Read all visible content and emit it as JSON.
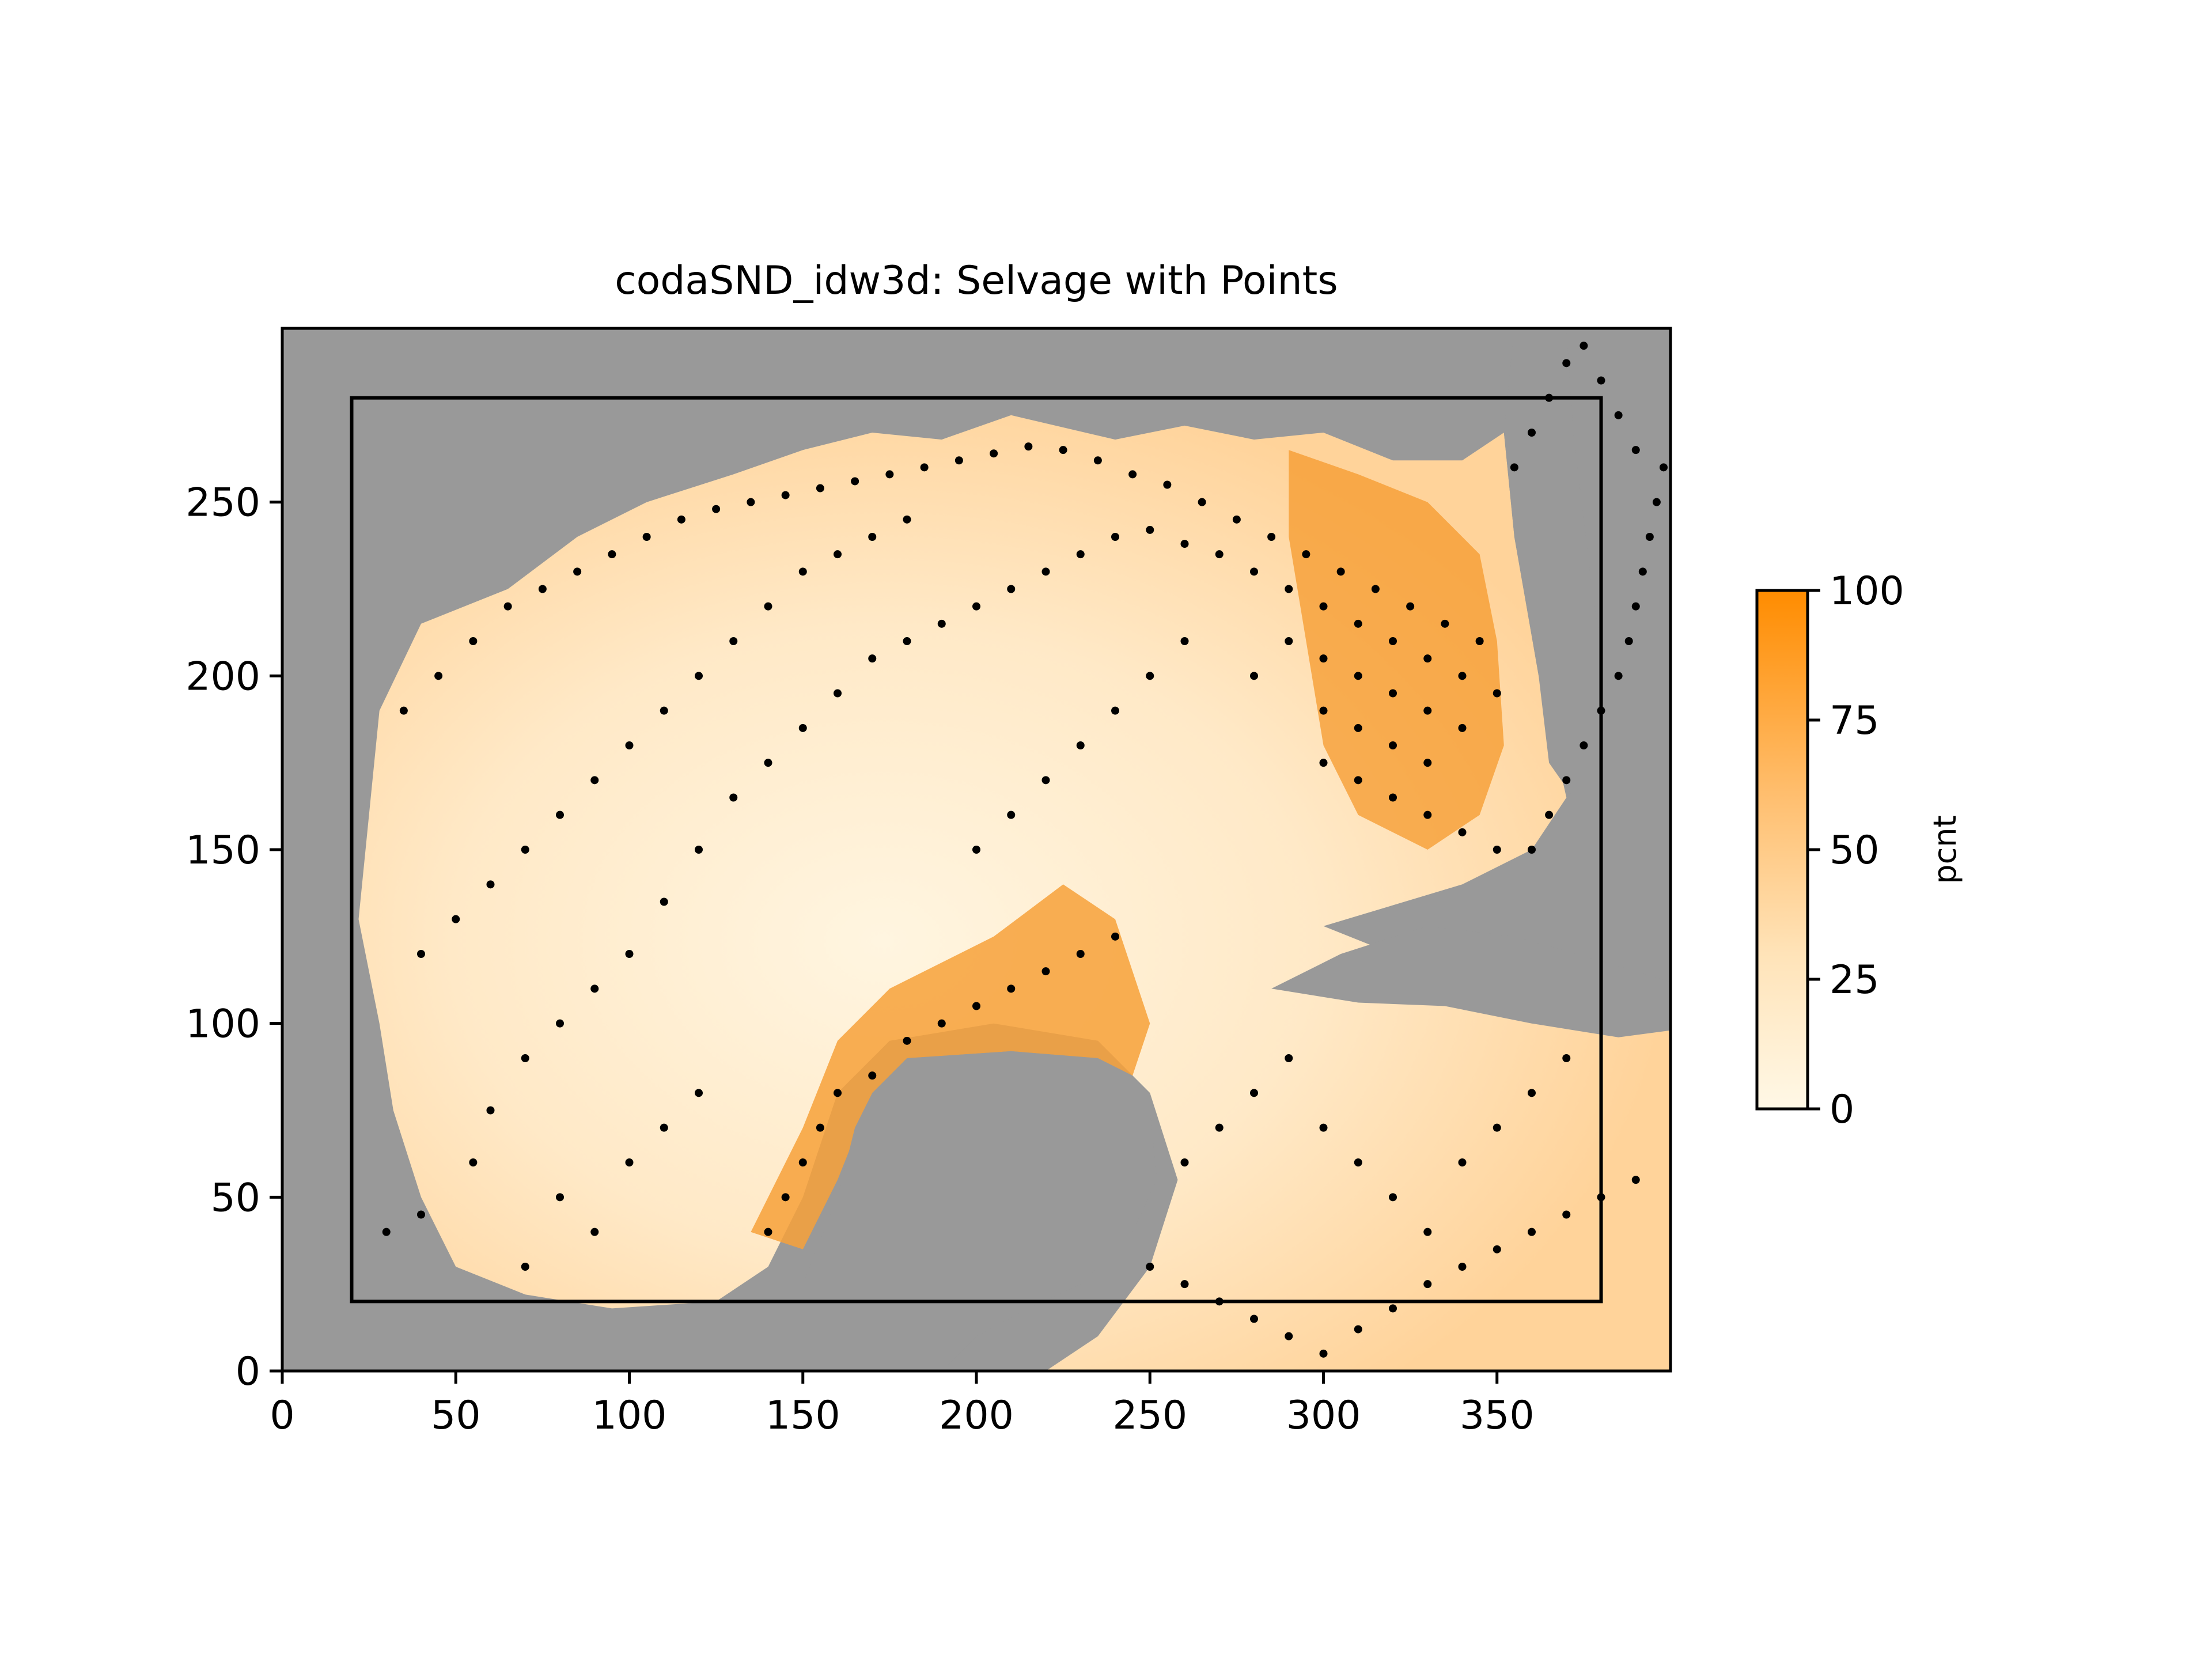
{
  "chart_data": {
    "type": "heatmap",
    "title": "codaSND_idw3d: Selvage with Points",
    "xlim": [
      0,
      400
    ],
    "ylim": [
      0,
      300
    ],
    "x_ticks": [
      0,
      50,
      100,
      150,
      200,
      250,
      300,
      350
    ],
    "y_ticks": [
      0,
      50,
      100,
      150,
      200,
      250
    ],
    "x_tick_labels": [
      "0",
      "50",
      "100",
      "150",
      "200",
      "250",
      "300",
      "350"
    ],
    "y_tick_labels": [
      "0",
      "50",
      "100",
      "150",
      "200",
      "250"
    ],
    "selvage_box": {
      "x0": 20,
      "y0": 20,
      "x1": 380,
      "y1": 280
    },
    "colorbar": {
      "label": "pcnt",
      "range": [
        0,
        100
      ],
      "ticks": [
        0,
        25,
        50,
        75,
        100
      ],
      "tick_labels": [
        "0",
        "25",
        "50",
        "75",
        "100"
      ],
      "low_color": "#fff8e6",
      "high_color": "#ff8c00"
    },
    "colors": {
      "nodata": "#999999",
      "points": "#000000",
      "frame": "#000000"
    },
    "regions": {
      "land_west_gulf": [
        [
          40,
          50
        ],
        [
          50,
          30
        ],
        [
          70,
          22
        ],
        [
          95,
          18
        ],
        [
          125,
          20
        ],
        [
          140,
          30
        ],
        [
          150,
          50
        ],
        [
          150,
          80
        ],
        [
          160,
          100
        ],
        [
          190,
          118
        ],
        [
          215,
          140
        ],
        [
          235,
          150
        ],
        [
          250,
          140
        ],
        [
          260,
          110
        ],
        [
          290,
          105
        ],
        [
          320,
          120
        ],
        [
          345,
          118
        ],
        [
          360,
          115
        ],
        [
          380,
          110
        ],
        [
          390,
          105
        ],
        [
          400,
          100
        ],
        [
          400,
          300
        ],
        [
          0,
          300
        ],
        [
          0,
          230
        ],
        [
          25,
          215
        ],
        [
          30,
          190
        ],
        [
          28,
          170
        ],
        [
          25,
          150
        ],
        [
          22,
          120
        ],
        [
          30,
          95
        ],
        [
          35,
          70
        ]
      ],
      "yucatan_land": [
        [
          170,
          80
        ],
        [
          180,
          90
        ],
        [
          210,
          92
        ],
        [
          235,
          90
        ],
        [
          245,
          85
        ],
        [
          250,
          75
        ],
        [
          252,
          55
        ],
        [
          245,
          40
        ],
        [
          230,
          25
        ],
        [
          215,
          18
        ],
        [
          200,
          10
        ],
        [
          190,
          0
        ],
        [
          150,
          0
        ],
        [
          150,
          25
        ],
        [
          160,
          50
        ],
        [
          165,
          70
        ]
      ],
      "florida_land": [
        [
          355,
          300
        ],
        [
          370,
          300
        ],
        [
          372,
          270
        ],
        [
          378,
          220
        ],
        [
          382,
          200
        ],
        [
          380,
          175
        ],
        [
          372,
          165
        ],
        [
          365,
          175
        ],
        [
          362,
          200
        ],
        [
          355,
          240
        ],
        [
          352,
          270
        ]
      ],
      "cuba_land": [
        [
          285,
          110
        ],
        [
          305,
          120
        ],
        [
          330,
          128
        ],
        [
          355,
          125
        ],
        [
          380,
          118
        ],
        [
          400,
          112
        ],
        [
          400,
          98
        ],
        [
          385,
          96
        ],
        [
          360,
          100
        ],
        [
          335,
          105
        ],
        [
          310,
          106
        ]
      ]
    },
    "points": [
      [
        30,
        40
      ],
      [
        40,
        45
      ],
      [
        55,
        60
      ],
      [
        60,
        75
      ],
      [
        70,
        90
      ],
      [
        80,
        100
      ],
      [
        90,
        110
      ],
      [
        100,
        120
      ],
      [
        110,
        135
      ],
      [
        120,
        150
      ],
      [
        130,
        165
      ],
      [
        140,
        175
      ],
      [
        150,
        185
      ],
      [
        160,
        195
      ],
      [
        170,
        205
      ],
      [
        180,
        210
      ],
      [
        190,
        215
      ],
      [
        200,
        220
      ],
      [
        210,
        225
      ],
      [
        220,
        230
      ],
      [
        230,
        235
      ],
      [
        240,
        240
      ],
      [
        250,
        242
      ],
      [
        260,
        238
      ],
      [
        270,
        235
      ],
      [
        280,
        230
      ],
      [
        290,
        225
      ],
      [
        300,
        220
      ],
      [
        310,
        215
      ],
      [
        320,
        210
      ],
      [
        330,
        205
      ],
      [
        340,
        200
      ],
      [
        350,
        195
      ],
      [
        35,
        190
      ],
      [
        45,
        200
      ],
      [
        55,
        210
      ],
      [
        65,
        220
      ],
      [
        75,
        225
      ],
      [
        85,
        230
      ],
      [
        95,
        235
      ],
      [
        105,
        240
      ],
      [
        115,
        245
      ],
      [
        125,
        248
      ],
      [
        135,
        250
      ],
      [
        145,
        252
      ],
      [
        155,
        254
      ],
      [
        165,
        256
      ],
      [
        175,
        258
      ],
      [
        185,
        260
      ],
      [
        195,
        262
      ],
      [
        205,
        264
      ],
      [
        215,
        266
      ],
      [
        225,
        265
      ],
      [
        235,
        262
      ],
      [
        245,
        258
      ],
      [
        255,
        255
      ],
      [
        265,
        250
      ],
      [
        275,
        245
      ],
      [
        285,
        240
      ],
      [
        295,
        235
      ],
      [
        305,
        230
      ],
      [
        315,
        225
      ],
      [
        325,
        220
      ],
      [
        335,
        215
      ],
      [
        345,
        210
      ],
      [
        40,
        120
      ],
      [
        50,
        130
      ],
      [
        60,
        140
      ],
      [
        70,
        150
      ],
      [
        80,
        160
      ],
      [
        90,
        170
      ],
      [
        100,
        180
      ],
      [
        110,
        190
      ],
      [
        120,
        200
      ],
      [
        130,
        210
      ],
      [
        140,
        220
      ],
      [
        150,
        230
      ],
      [
        160,
        235
      ],
      [
        170,
        240
      ],
      [
        180,
        245
      ],
      [
        140,
        40
      ],
      [
        145,
        50
      ],
      [
        150,
        60
      ],
      [
        155,
        70
      ],
      [
        160,
        80
      ],
      [
        170,
        85
      ],
      [
        180,
        95
      ],
      [
        190,
        100
      ],
      [
        200,
        105
      ],
      [
        210,
        110
      ],
      [
        220,
        115
      ],
      [
        230,
        120
      ],
      [
        240,
        125
      ],
      [
        260,
        60
      ],
      [
        270,
        70
      ],
      [
        280,
        80
      ],
      [
        290,
        90
      ],
      [
        300,
        70
      ],
      [
        310,
        60
      ],
      [
        320,
        50
      ],
      [
        330,
        40
      ],
      [
        340,
        60
      ],
      [
        350,
        70
      ],
      [
        360,
        80
      ],
      [
        370,
        90
      ],
      [
        360,
        150
      ],
      [
        365,
        160
      ],
      [
        370,
        170
      ],
      [
        375,
        180
      ],
      [
        380,
        190
      ],
      [
        385,
        200
      ],
      [
        388,
        210
      ],
      [
        390,
        220
      ],
      [
        392,
        230
      ],
      [
        394,
        240
      ],
      [
        396,
        250
      ],
      [
        398,
        260
      ],
      [
        355,
        260
      ],
      [
        360,
        270
      ],
      [
        365,
        280
      ],
      [
        370,
        290
      ],
      [
        375,
        295
      ],
      [
        380,
        285
      ],
      [
        385,
        275
      ],
      [
        390,
        265
      ],
      [
        300,
        175
      ],
      [
        310,
        170
      ],
      [
        320,
        165
      ],
      [
        330,
        160
      ],
      [
        340,
        155
      ],
      [
        350,
        150
      ],
      [
        300,
        190
      ],
      [
        310,
        185
      ],
      [
        320,
        180
      ],
      [
        330,
        175
      ],
      [
        280,
        200
      ],
      [
        290,
        210
      ],
      [
        300,
        205
      ],
      [
        310,
        200
      ],
      [
        320,
        195
      ],
      [
        330,
        190
      ],
      [
        340,
        185
      ],
      [
        200,
        150
      ],
      [
        210,
        160
      ],
      [
        220,
        170
      ],
      [
        230,
        180
      ],
      [
        240,
        190
      ],
      [
        250,
        200
      ],
      [
        260,
        210
      ],
      [
        100,
        60
      ],
      [
        110,
        70
      ],
      [
        120,
        80
      ],
      [
        80,
        50
      ],
      [
        90,
        40
      ],
      [
        70,
        30
      ],
      [
        250,
        30
      ],
      [
        260,
        25
      ],
      [
        270,
        20
      ],
      [
        280,
        15
      ],
      [
        290,
        10
      ],
      [
        300,
        5
      ],
      [
        310,
        12
      ],
      [
        320,
        18
      ],
      [
        330,
        25
      ],
      [
        340,
        30
      ],
      [
        350,
        35
      ],
      [
        360,
        40
      ],
      [
        370,
        45
      ],
      [
        380,
        50
      ],
      [
        390,
        55
      ]
    ]
  }
}
